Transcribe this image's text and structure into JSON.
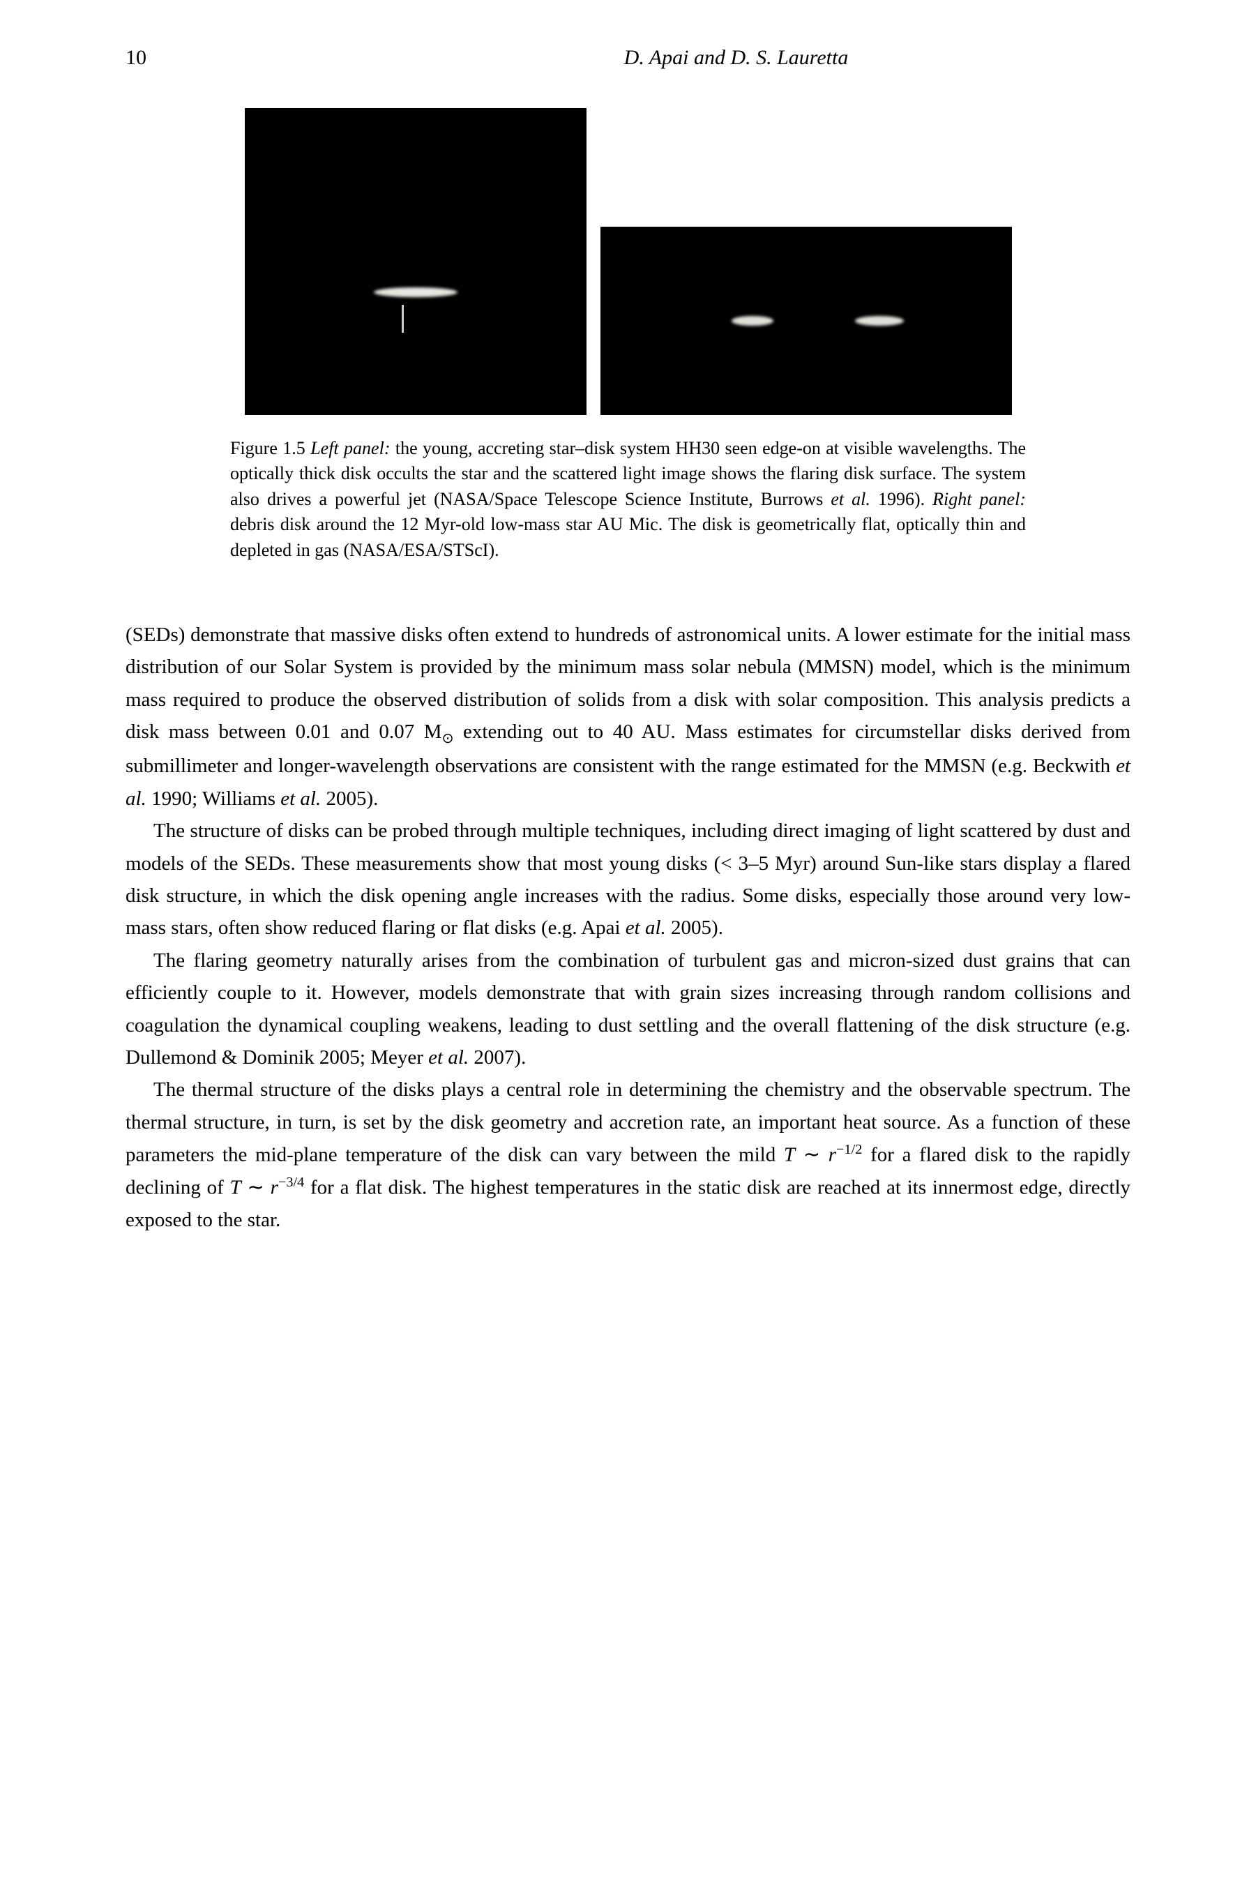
{
  "page_number": "10",
  "header_authors": "D. Apai and D. S. Lauretta",
  "figure": {
    "label": "Figure 1.5 ",
    "left_label": "Left panel:",
    "left_text": " the young, accreting star–disk system HH30 seen edge-on at visible wavelengths. The optically thick disk occults the star and the scattered light image shows the flaring disk surface. The system also drives a powerful jet (NASA/Space Telescope Science Institute, Burrows ",
    "left_cite": "et al.",
    "left_year": " 1996). ",
    "right_label": "Right panel:",
    "right_text": " debris disk around the 12 Myr-old low-mass star AU Mic. The disk is geometrically flat, optically thin and depleted in gas (NASA/ESA/STScI)."
  },
  "para1": {
    "t1": "(SEDs) demonstrate that massive disks often extend to hundreds of astronomical units. A lower estimate for the initial mass distribution of our Solar System is provided by the minimum mass solar nebula (MMSN) model, which is the minimum mass required to produce the observed distribution of solids from a disk with solar composition. This analysis predicts a disk mass between 0.01 and 0.07 M",
    "sun": "⊙",
    "t2": " extending out to 40 AU. Mass estimates for circumstellar disks derived from submillimeter and longer-wavelength observations are consistent with the range estimated for the MMSN (e.g. Beckwith ",
    "cite1": "et al.",
    "t3": " 1990; Williams ",
    "cite2": "et al.",
    "t4": " 2005)."
  },
  "para2": {
    "t1": "The structure of disks can be probed through multiple techniques, including direct imaging of light scattered by dust and models of the SEDs. These measurements show that most young disks (< 3–5 Myr) around Sun-like stars display a flared disk structure, in which the disk opening angle increases with the radius. Some disks, especially those around very low-mass stars, often show reduced flaring or flat disks (e.g. Apai ",
    "cite1": "et al.",
    "t2": " 2005)."
  },
  "para3": {
    "t1": "The flaring geometry naturally arises from the combination of turbulent gas and micron-sized dust grains that can efficiently couple to it. However, models demonstrate that with grain sizes increasing through random collisions and coagulation the dynamical coupling weakens, leading to dust settling and the overall flattening of the disk structure (e.g. Dullemond & Dominik 2005; Meyer ",
    "cite1": "et al.",
    "t2": " 2007)."
  },
  "para4": {
    "t1": "The thermal structure of the disks plays a central role in determining the chemistry and the observable spectrum. The thermal structure, in turn, is set by the disk geometry and accretion rate, an important heat source. As a function of these parameters the mid-plane temperature of the disk can vary between the mild ",
    "eq1a": "T",
    "eq1b": " ∼ ",
    "eq1c": "r",
    "exp1": "−1/2",
    "t2": " for a flared disk to the rapidly declining of ",
    "eq2a": "T",
    "eq2b": " ∼ ",
    "eq2c": "r",
    "exp2": "−3/4",
    "t3": " for a flat disk. The highest temperatures in the static disk are reached at its innermost edge, directly exposed to the star."
  }
}
